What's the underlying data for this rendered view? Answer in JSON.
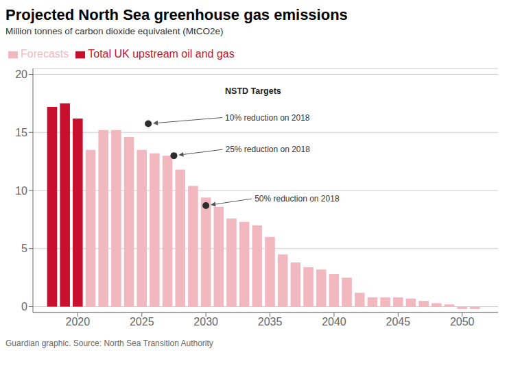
{
  "chart_data": {
    "type": "bar",
    "title": "Projected North Sea greenhouse gas emissions",
    "subtitle": "Million tonnes of carbon dioxide equivalent (MtCO2e)",
    "source": "Guardian graphic. Source: North Sea Transition Authority",
    "x": [
      2018,
      2019,
      2020,
      2021,
      2022,
      2023,
      2024,
      2025,
      2026,
      2027,
      2028,
      2029,
      2030,
      2031,
      2032,
      2033,
      2034,
      2035,
      2036,
      2037,
      2038,
      2039,
      2040,
      2041,
      2042,
      2043,
      2044,
      2045,
      2046,
      2047,
      2048,
      2049,
      2050,
      2051
    ],
    "series": [
      {
        "name": "Total UK upstream oil and gas",
        "color": "#c8102e",
        "values": [
          17.2,
          17.5,
          16.2,
          null,
          null,
          null,
          null,
          null,
          null,
          null,
          null,
          null,
          null,
          null,
          null,
          null,
          null,
          null,
          null,
          null,
          null,
          null,
          null,
          null,
          null,
          null,
          null,
          null,
          null,
          null,
          null,
          null,
          null,
          null
        ]
      },
      {
        "name": "Forecasts",
        "color": "#f2b8c0",
        "values": [
          null,
          null,
          null,
          13.5,
          15.2,
          15.2,
          14.6,
          13.5,
          13.2,
          13.0,
          11.8,
          10.4,
          9.4,
          8.6,
          7.6,
          7.3,
          7.0,
          6.0,
          4.5,
          3.8,
          3.4,
          3.2,
          2.8,
          2.5,
          1.2,
          0.8,
          0.8,
          0.8,
          0.7,
          0.5,
          0.3,
          0.2,
          -0.2,
          -0.2
        ]
      }
    ],
    "xlim": [
      2016.5,
      2052.8
    ],
    "xticks": [
      2020,
      2025,
      2030,
      2035,
      2040,
      2045,
      2050
    ],
    "ylim": [
      -0.5,
      20.5
    ],
    "yticks": [
      0,
      5,
      10,
      15,
      20
    ],
    "grid": true,
    "legend": "top left",
    "annotations": [
      {
        "text": "NSTD Targets"
      },
      {
        "text": "10% reduction on 2018",
        "x": 2025.5,
        "y": 15.75
      },
      {
        "text": "25% reduction on 2018",
        "x": 2027.5,
        "y": 13.0
      },
      {
        "text": "50% reduction on 2018",
        "x": 2030.0,
        "y": 8.7
      }
    ]
  }
}
